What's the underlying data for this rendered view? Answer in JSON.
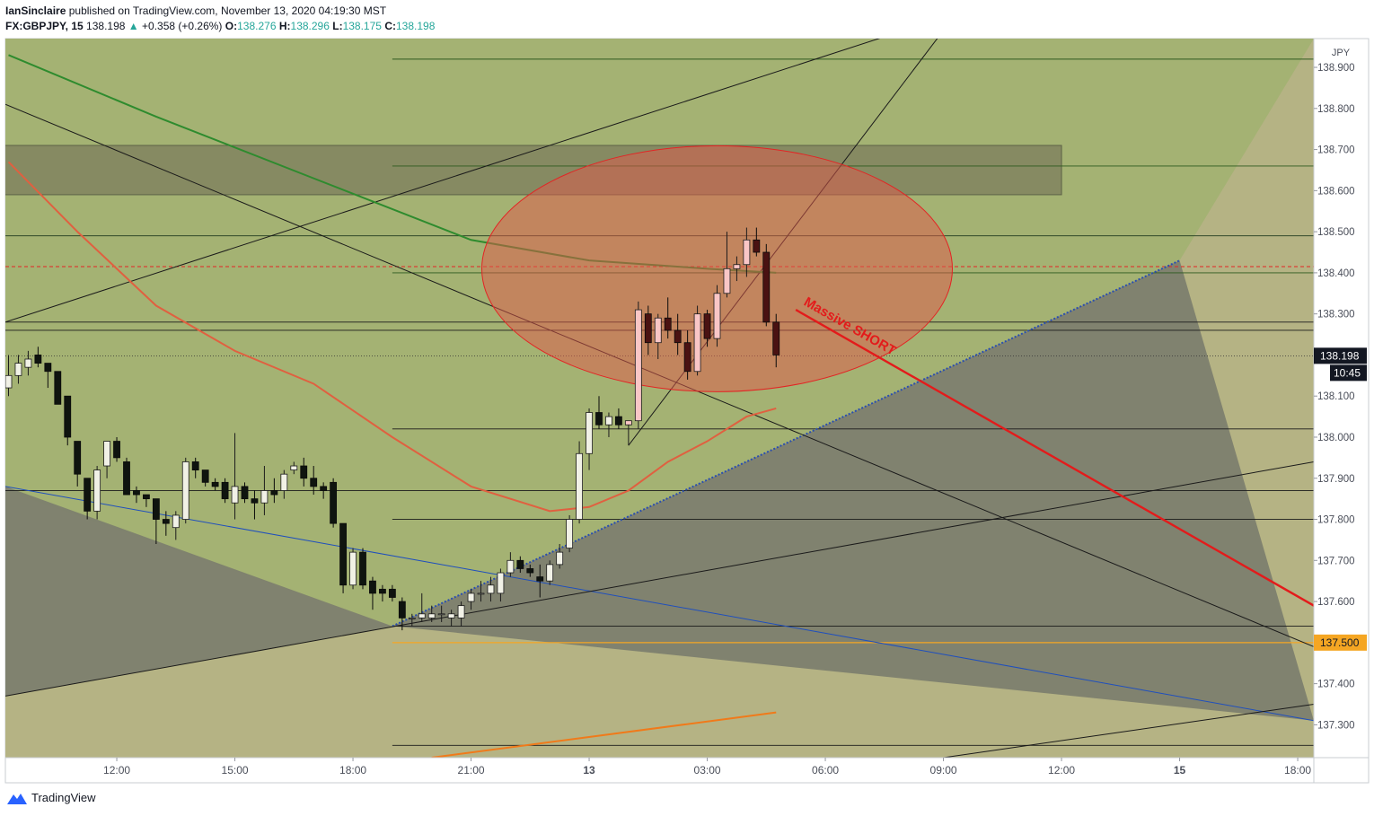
{
  "header": {
    "author": "IanSinclaire",
    "published": "published on TradingView.com, November 13, 2020 04:19:30 MST",
    "symbol": "FX:GBPJPY, 15",
    "last": "138.198",
    "change_arrow": "▲",
    "change": "+0.358 (+0.26%)",
    "o_label": "O:",
    "o": "138.276",
    "h_label": "H:",
    "h": "138.296",
    "l_label": "L:",
    "l": "138.175",
    "c_label": "C:",
    "c": "138.198"
  },
  "footer": {
    "brand": "TradingView"
  },
  "chart_data": {
    "type": "candlestick",
    "currency": "JPY",
    "ylim": [
      137.22,
      138.97
    ],
    "y_ticks": [
      137.3,
      137.4,
      137.5,
      137.6,
      137.7,
      137.8,
      137.9,
      138.0,
      138.1,
      138.2,
      138.3,
      138.4,
      138.5,
      138.6,
      138.7,
      138.8,
      138.9
    ],
    "y_tick_labels": [
      "137.300",
      "137.400",
      "137.500",
      "137.600",
      "137.700",
      "137.800",
      "137.900",
      "138.000",
      "138.100",
      "138.200",
      "138.300",
      "138.400",
      "138.500",
      "138.600",
      "138.700",
      "138.800",
      "138.900"
    ],
    "x_tick_labels": [
      "12:00",
      "15:00",
      "18:00",
      "21:00",
      "13",
      "03:00",
      "06:00",
      "09:00",
      "12:00",
      "15",
      "18:00"
    ],
    "bar_interval_minutes": 15,
    "candles": [
      {
        "t": "Nov 12 09:15",
        "o": 138.12,
        "h": 138.2,
        "l": 138.1,
        "c": 138.15
      },
      {
        "t": "Nov 12 09:30",
        "o": 138.15,
        "h": 138.2,
        "l": 138.13,
        "c": 138.18
      },
      {
        "t": "Nov 12 09:45",
        "o": 138.17,
        "h": 138.21,
        "l": 138.15,
        "c": 138.19
      },
      {
        "t": "Nov 12 10:00",
        "o": 138.2,
        "h": 138.22,
        "l": 138.17,
        "c": 138.18
      },
      {
        "t": "Nov 12 10:15",
        "o": 138.18,
        "h": 138.18,
        "l": 138.12,
        "c": 138.16
      },
      {
        "t": "Nov 12 10:30",
        "o": 138.16,
        "h": 138.16,
        "l": 138.08,
        "c": 138.08
      },
      {
        "t": "Nov 12 10:45",
        "o": 138.1,
        "h": 138.1,
        "l": 137.98,
        "c": 138.0
      },
      {
        "t": "Nov 12 11:00",
        "o": 137.99,
        "h": 137.99,
        "l": 137.88,
        "c": 137.91
      },
      {
        "t": "Nov 12 11:15",
        "o": 137.9,
        "h": 137.9,
        "l": 137.8,
        "c": 137.82
      },
      {
        "t": "Nov 12 11:30",
        "o": 137.82,
        "h": 137.93,
        "l": 137.8,
        "c": 137.92
      },
      {
        "t": "Nov 12 11:45",
        "o": 137.93,
        "h": 137.99,
        "l": 137.9,
        "c": 137.99
      },
      {
        "t": "Nov 12 12:00",
        "o": 137.99,
        "h": 138.0,
        "l": 137.94,
        "c": 137.95
      },
      {
        "t": "Nov 12 12:15",
        "o": 137.94,
        "h": 137.95,
        "l": 137.86,
        "c": 137.86
      },
      {
        "t": "Nov 12 12:30",
        "o": 137.87,
        "h": 137.88,
        "l": 137.84,
        "c": 137.86
      },
      {
        "t": "Nov 12 12:45",
        "o": 137.86,
        "h": 137.86,
        "l": 137.83,
        "c": 137.85
      },
      {
        "t": "Nov 12 13:00",
        "o": 137.85,
        "h": 137.85,
        "l": 137.74,
        "c": 137.8
      },
      {
        "t": "Nov 12 13:15",
        "o": 137.8,
        "h": 137.82,
        "l": 137.76,
        "c": 137.79
      },
      {
        "t": "Nov 12 13:30",
        "o": 137.78,
        "h": 137.82,
        "l": 137.75,
        "c": 137.81
      },
      {
        "t": "Nov 12 13:45",
        "o": 137.8,
        "h": 137.95,
        "l": 137.79,
        "c": 137.94
      },
      {
        "t": "Nov 12 14:00",
        "o": 137.94,
        "h": 137.95,
        "l": 137.9,
        "c": 137.92
      },
      {
        "t": "Nov 12 14:15",
        "o": 137.92,
        "h": 137.92,
        "l": 137.88,
        "c": 137.89
      },
      {
        "t": "Nov 12 14:30",
        "o": 137.89,
        "h": 137.9,
        "l": 137.87,
        "c": 137.88
      },
      {
        "t": "Nov 12 14:45",
        "o": 137.89,
        "h": 137.9,
        "l": 137.84,
        "c": 137.85
      },
      {
        "t": "Nov 12 15:00",
        "o": 137.84,
        "h": 138.01,
        "l": 137.8,
        "c": 137.88
      },
      {
        "t": "Nov 12 15:15",
        "o": 137.88,
        "h": 137.89,
        "l": 137.84,
        "c": 137.85
      },
      {
        "t": "Nov 12 15:30",
        "o": 137.85,
        "h": 137.87,
        "l": 137.8,
        "c": 137.84
      },
      {
        "t": "Nov 12 15:45",
        "o": 137.84,
        "h": 137.93,
        "l": 137.81,
        "c": 137.87
      },
      {
        "t": "Nov 12 16:00",
        "o": 137.87,
        "h": 137.9,
        "l": 137.84,
        "c": 137.86
      },
      {
        "t": "Nov 12 16:15",
        "o": 137.87,
        "h": 137.92,
        "l": 137.85,
        "c": 137.91
      },
      {
        "t": "Nov 12 16:30",
        "o": 137.92,
        "h": 137.94,
        "l": 137.91,
        "c": 137.93
      },
      {
        "t": "Nov 12 16:45",
        "o": 137.93,
        "h": 137.95,
        "l": 137.88,
        "c": 137.9
      },
      {
        "t": "Nov 12 17:00",
        "o": 137.9,
        "h": 137.93,
        "l": 137.86,
        "c": 137.88
      },
      {
        "t": "Nov 12 17:15",
        "o": 137.88,
        "h": 137.89,
        "l": 137.85,
        "c": 137.87
      },
      {
        "t": "Nov 12 17:30",
        "o": 137.89,
        "h": 137.9,
        "l": 137.78,
        "c": 137.79
      },
      {
        "t": "Nov 12 17:45",
        "o": 137.79,
        "h": 137.79,
        "l": 137.62,
        "c": 137.64
      },
      {
        "t": "Nov 12 18:00",
        "o": 137.64,
        "h": 137.73,
        "l": 137.63,
        "c": 137.72
      },
      {
        "t": "Nov 12 18:15",
        "o": 137.72,
        "h": 137.73,
        "l": 137.63,
        "c": 137.64
      },
      {
        "t": "Nov 12 18:30",
        "o": 137.65,
        "h": 137.66,
        "l": 137.58,
        "c": 137.62
      },
      {
        "t": "Nov 12 18:45",
        "o": 137.63,
        "h": 137.64,
        "l": 137.6,
        "c": 137.62
      },
      {
        "t": "Nov 12 19:00",
        "o": 137.63,
        "h": 137.64,
        "l": 137.6,
        "c": 137.61
      },
      {
        "t": "Nov 12 19:15",
        "o": 137.6,
        "h": 137.61,
        "l": 137.53,
        "c": 137.56
      },
      {
        "t": "Nov 12 19:30",
        "o": 137.56,
        "h": 137.57,
        "l": 137.54,
        "c": 137.56
      },
      {
        "t": "Nov 12 19:45",
        "o": 137.56,
        "h": 137.62,
        "l": 137.55,
        "c": 137.57
      },
      {
        "t": "Nov 12 20:00",
        "o": 137.56,
        "h": 137.59,
        "l": 137.55,
        "c": 137.57
      },
      {
        "t": "Nov 12 20:15",
        "o": 137.57,
        "h": 137.59,
        "l": 137.55,
        "c": 137.57
      },
      {
        "t": "Nov 12 20:30",
        "o": 137.56,
        "h": 137.58,
        "l": 137.54,
        "c": 137.57
      },
      {
        "t": "Nov 12 20:45",
        "o": 137.56,
        "h": 137.6,
        "l": 137.54,
        "c": 137.59
      },
      {
        "t": "Nov 12 21:00",
        "o": 137.6,
        "h": 137.63,
        "l": 137.58,
        "c": 137.62
      },
      {
        "t": "Nov 12 21:15",
        "o": 137.62,
        "h": 137.65,
        "l": 137.6,
        "c": 137.62
      },
      {
        "t": "Nov 12 21:30",
        "o": 137.62,
        "h": 137.66,
        "l": 137.6,
        "c": 137.64
      },
      {
        "t": "Nov 12 21:45",
        "o": 137.62,
        "h": 137.68,
        "l": 137.6,
        "c": 137.67
      },
      {
        "t": "Nov 12 22:00",
        "o": 137.67,
        "h": 137.72,
        "l": 137.66,
        "c": 137.7
      },
      {
        "t": "Nov 12 22:15",
        "o": 137.7,
        "h": 137.71,
        "l": 137.67,
        "c": 137.68
      },
      {
        "t": "Nov 12 22:30",
        "o": 137.68,
        "h": 137.69,
        "l": 137.66,
        "c": 137.67
      },
      {
        "t": "Nov 12 22:45",
        "o": 137.66,
        "h": 137.69,
        "l": 137.61,
        "c": 137.65
      },
      {
        "t": "Nov 12 23:00",
        "o": 137.65,
        "h": 137.7,
        "l": 137.64,
        "c": 137.69
      },
      {
        "t": "Nov 12 23:15",
        "o": 137.69,
        "h": 137.74,
        "l": 137.68,
        "c": 137.72
      },
      {
        "t": "Nov 12 23:30",
        "o": 137.73,
        "h": 137.81,
        "l": 137.72,
        "c": 137.8
      },
      {
        "t": "Nov 12 23:45",
        "o": 137.8,
        "h": 137.99,
        "l": 137.79,
        "c": 137.96
      },
      {
        "t": "Nov 13 00:00",
        "o": 137.96,
        "h": 138.07,
        "l": 137.92,
        "c": 138.06
      },
      {
        "t": "Nov 13 00:15",
        "o": 138.06,
        "h": 138.1,
        "l": 138.02,
        "c": 138.03
      },
      {
        "t": "Nov 13 00:30",
        "o": 138.03,
        "h": 138.06,
        "l": 138.0,
        "c": 138.05
      },
      {
        "t": "Nov 13 00:45",
        "o": 138.05,
        "h": 138.07,
        "l": 138.02,
        "c": 138.03
      },
      {
        "t": "Nov 13 01:00",
        "o": 138.03,
        "h": 138.04,
        "l": 137.98,
        "c": 138.04
      },
      {
        "t": "Nov 13 01:15",
        "o": 138.04,
        "h": 138.33,
        "l": 138.02,
        "c": 138.31
      },
      {
        "t": "Nov 13 01:30",
        "o": 138.3,
        "h": 138.32,
        "l": 138.2,
        "c": 138.23
      },
      {
        "t": "Nov 13 01:45",
        "o": 138.23,
        "h": 138.3,
        "l": 138.19,
        "c": 138.29
      },
      {
        "t": "Nov 13 02:00",
        "o": 138.29,
        "h": 138.34,
        "l": 138.24,
        "c": 138.26
      },
      {
        "t": "Nov 13 02:15",
        "o": 138.26,
        "h": 138.3,
        "l": 138.2,
        "c": 138.23
      },
      {
        "t": "Nov 13 02:30",
        "o": 138.23,
        "h": 138.26,
        "l": 138.14,
        "c": 138.16
      },
      {
        "t": "Nov 13 02:45",
        "o": 138.16,
        "h": 138.32,
        "l": 138.15,
        "c": 138.3
      },
      {
        "t": "Nov 13 03:00",
        "o": 138.3,
        "h": 138.31,
        "l": 138.22,
        "c": 138.24
      },
      {
        "t": "Nov 13 03:15",
        "o": 138.24,
        "h": 138.37,
        "l": 138.22,
        "c": 138.35
      },
      {
        "t": "Nov 13 03:30",
        "o": 138.35,
        "h": 138.5,
        "l": 138.34,
        "c": 138.41
      },
      {
        "t": "Nov 13 03:45",
        "o": 138.41,
        "h": 138.44,
        "l": 138.38,
        "c": 138.42
      },
      {
        "t": "Nov 13 04:00",
        "o": 138.42,
        "h": 138.51,
        "l": 138.39,
        "c": 138.48
      },
      {
        "t": "Nov 13 04:15",
        "o": 138.48,
        "h": 138.51,
        "l": 138.44,
        "c": 138.45
      },
      {
        "t": "Nov 13 04:30",
        "o": 138.45,
        "h": 138.47,
        "l": 138.27,
        "c": 138.28
      },
      {
        "t": "Nov 13 04:45",
        "o": 138.28,
        "h": 138.3,
        "l": 138.17,
        "c": 138.2
      }
    ],
    "moving_averages": [
      {
        "color": "#2e8b2e",
        "points": [
          [
            "Nov 12 09:15",
            138.93
          ],
          [
            "Nov 12 13:00",
            138.78
          ],
          [
            "Nov 12 17:00",
            138.63
          ],
          [
            "Nov 12 21:00",
            138.48
          ],
          [
            "Nov 13 00:00",
            138.43
          ],
          [
            "Nov 13 03:00",
            138.41
          ],
          [
            "Nov 13 04:45",
            138.4
          ]
        ]
      },
      {
        "color": "#e06040",
        "points": [
          [
            "Nov 12 09:15",
            138.67
          ],
          [
            "Nov 12 11:00",
            138.5
          ],
          [
            "Nov 12 13:00",
            138.32
          ],
          [
            "Nov 12 15:00",
            138.21
          ],
          [
            "Nov 12 17:00",
            138.13
          ],
          [
            "Nov 12 19:00",
            138.0
          ],
          [
            "Nov 12 21:00",
            137.88
          ],
          [
            "Nov 12 23:00",
            137.82
          ],
          [
            "Nov 13 00:00",
            137.83
          ],
          [
            "Nov 13 01:00",
            137.87
          ],
          [
            "Nov 13 02:00",
            137.94
          ],
          [
            "Nov 13 03:00",
            137.99
          ],
          [
            "Nov 13 04:00",
            138.05
          ],
          [
            "Nov 13 04:45",
            138.07
          ]
        ]
      },
      {
        "color": "#f07a1a",
        "points": [
          [
            "Nov 12 20:00",
            137.22
          ],
          [
            "Nov 13 04:45",
            137.33
          ]
        ]
      }
    ],
    "horizontal_lines": [
      {
        "price": 138.92,
        "color": "#2d5a1f",
        "from": "Nov 12 19:00"
      },
      {
        "price": 138.66,
        "color": "#2d5a1f",
        "from": "Nov 12 19:00"
      },
      {
        "price": 138.49,
        "color": "#1f3a1f",
        "from": "Nov 12 09:00"
      },
      {
        "price": 138.4,
        "color": "#2d5a1f",
        "from": "Nov 12 19:00"
      },
      {
        "price": 138.28,
        "color": "#1a1a1a",
        "from": "Nov 12 09:00"
      },
      {
        "price": 138.26,
        "color": "#1a1a1a",
        "from": "Nov 12 09:00"
      },
      {
        "price": 138.02,
        "color": "#1a1a1a",
        "from": "Nov 12 19:00"
      },
      {
        "price": 137.87,
        "color": "#1a1a1a",
        "from": "Nov 12 09:00"
      },
      {
        "price": 137.8,
        "color": "#1a1a1a",
        "from": "Nov 12 19:00"
      },
      {
        "price": 137.54,
        "color": "#1a1a1a",
        "from": "Nov 12 19:00"
      },
      {
        "price": 137.5,
        "color": "#f5a623",
        "from": "Nov 12 19:00"
      },
      {
        "price": 137.25,
        "color": "#1a1a1a",
        "from": "Nov 12 19:00"
      }
    ],
    "red_dashed_level": 138.415,
    "last_price": {
      "value": 138.198,
      "label": "138.198",
      "countdown": "10:45"
    },
    "level_badge": {
      "value": 137.5,
      "label": "137.500"
    },
    "supply_zone": {
      "top": 138.71,
      "bottom": 138.59,
      "from": "Nov 12 09:00",
      "to": "Nov 13 12:00"
    },
    "annotation": {
      "text": "Massive SHORT",
      "color": "#e31b1b"
    }
  }
}
